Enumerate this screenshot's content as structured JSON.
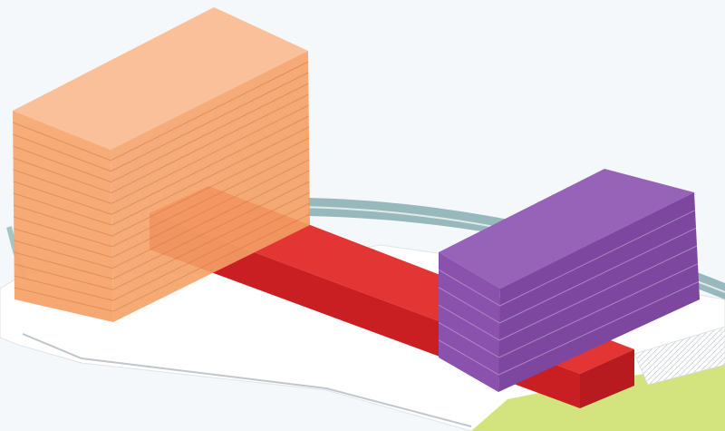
{
  "scene": {
    "background": "#f5f8fb",
    "ground_color": "#ffffff",
    "road_color": "#7fa7a9",
    "lawn_color": "#d3e37d",
    "colors": {
      "orange_block": "#f6a36b",
      "red_block": "#d8262a",
      "purple_block": "#8c55ad"
    },
    "blocks": [
      {
        "id": "orange",
        "floors": 16
      },
      {
        "id": "red",
        "floors": 0
      },
      {
        "id": "purple",
        "floors": 6
      }
    ]
  }
}
